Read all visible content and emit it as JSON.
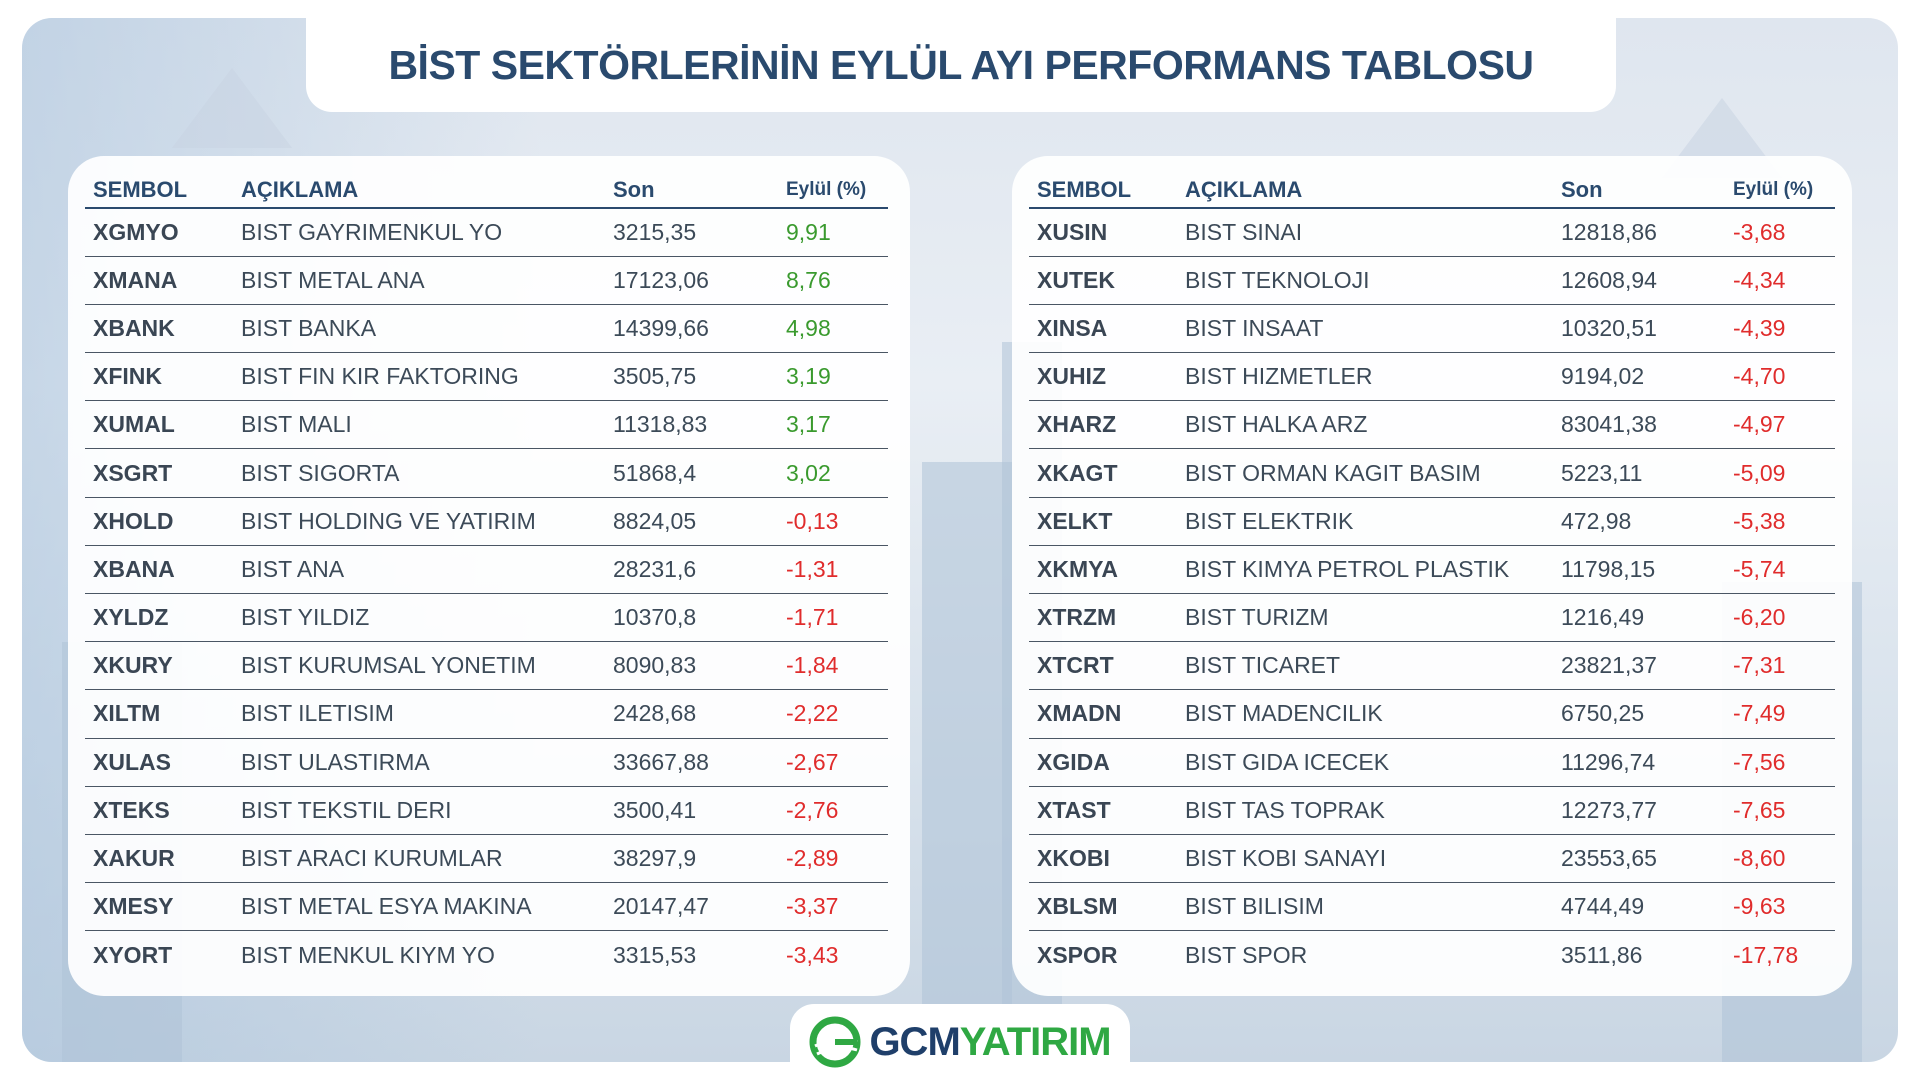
{
  "title": "BİST SEKTÖRLERİNİN EYLÜL AYI PERFORMANS TABLOSU",
  "headers": {
    "symbol": "SEMBOL",
    "description": "AÇIKLAMA",
    "last": "Son",
    "change": "Eylül (%)"
  },
  "colors": {
    "positive": "#3a9a2e",
    "negative": "#e02c2c",
    "heading": "#2a4a6e"
  },
  "left_rows": [
    {
      "symbol": "XGMYO",
      "description": "BIST GAYRIMENKUL YO",
      "last": "3215,35",
      "change": "9,91",
      "dir": "pos"
    },
    {
      "symbol": "XMANA",
      "description": "BIST METAL ANA",
      "last": "17123,06",
      "change": "8,76",
      "dir": "pos"
    },
    {
      "symbol": "XBANK",
      "description": "BIST BANKA",
      "last": "14399,66",
      "change": "4,98",
      "dir": "pos"
    },
    {
      "symbol": "XFINK",
      "description": "BIST FIN KIR FAKTORING",
      "last": "3505,75",
      "change": "3,19",
      "dir": "pos"
    },
    {
      "symbol": "XUMAL",
      "description": "BIST MALI",
      "last": "11318,83",
      "change": "3,17",
      "dir": "pos"
    },
    {
      "symbol": "XSGRT",
      "description": "BIST SIGORTA",
      "last": "51868,4",
      "change": "3,02",
      "dir": "pos"
    },
    {
      "symbol": "XHOLD",
      "description": "BIST HOLDING VE YATIRIM",
      "last": "8824,05",
      "change": "-0,13",
      "dir": "neg"
    },
    {
      "symbol": "XBANA",
      "description": "BIST ANA",
      "last": "28231,6",
      "change": "-1,31",
      "dir": "neg"
    },
    {
      "symbol": "XYLDZ",
      "description": "BIST YILDIZ",
      "last": "10370,8",
      "change": "-1,71",
      "dir": "neg"
    },
    {
      "symbol": "XKURY",
      "description": "BIST KURUMSAL YONETIM",
      "last": "8090,83",
      "change": "-1,84",
      "dir": "neg"
    },
    {
      "symbol": "XILTM",
      "description": "BIST ILETISIM",
      "last": "2428,68",
      "change": "-2,22",
      "dir": "neg"
    },
    {
      "symbol": "XULAS",
      "description": "BIST ULASTIRMA",
      "last": "33667,88",
      "change": "-2,67",
      "dir": "neg"
    },
    {
      "symbol": "XTEKS",
      "description": "BIST TEKSTIL DERI",
      "last": "3500,41",
      "change": "-2,76",
      "dir": "neg"
    },
    {
      "symbol": "XAKUR",
      "description": "BIST ARACI KURUMLAR",
      "last": "38297,9",
      "change": "-2,89",
      "dir": "neg"
    },
    {
      "symbol": "XMESY",
      "description": "BIST METAL ESYA MAKINA",
      "last": "20147,47",
      "change": "-3,37",
      "dir": "neg"
    },
    {
      "symbol": "XYORT",
      "description": "BIST MENKUL KIYM YO",
      "last": "3315,53",
      "change": "-3,43",
      "dir": "neg"
    }
  ],
  "right_rows": [
    {
      "symbol": "XUSIN",
      "description": "BIST SINAI",
      "last": "12818,86",
      "change": "-3,68",
      "dir": "neg"
    },
    {
      "symbol": "XUTEK",
      "description": "BIST TEKNOLOJI",
      "last": "12608,94",
      "change": "-4,34",
      "dir": "neg"
    },
    {
      "symbol": "XINSA",
      "description": "BIST INSAAT",
      "last": "10320,51",
      "change": "-4,39",
      "dir": "neg"
    },
    {
      "symbol": "XUHIZ",
      "description": "BIST HIZMETLER",
      "last": "9194,02",
      "change": "-4,70",
      "dir": "neg"
    },
    {
      "symbol": "XHARZ",
      "description": "BIST HALKA ARZ",
      "last": "83041,38",
      "change": "-4,97",
      "dir": "neg"
    },
    {
      "symbol": "XKAGT",
      "description": "BIST ORMAN KAGIT BASIM",
      "last": "5223,11",
      "change": "-5,09",
      "dir": "neg"
    },
    {
      "symbol": "XELKT",
      "description": "BIST ELEKTRIK",
      "last": "472,98",
      "change": "-5,38",
      "dir": "neg"
    },
    {
      "symbol": "XKMYA",
      "description": "BIST KIMYA PETROL PLASTIK",
      "last": "11798,15",
      "change": "-5,74",
      "dir": "neg"
    },
    {
      "symbol": "XTRZM",
      "description": "BIST TURIZM",
      "last": "1216,49",
      "change": "-6,20",
      "dir": "neg"
    },
    {
      "symbol": "XTCRT",
      "description": "BIST TICARET",
      "last": "23821,37",
      "change": "-7,31",
      "dir": "neg"
    },
    {
      "symbol": "XMADN",
      "description": "BIST MADENCILIK",
      "last": "6750,25",
      "change": "-7,49",
      "dir": "neg"
    },
    {
      "symbol": "XGIDA",
      "description": "BIST GIDA ICECEK",
      "last": "11296,74",
      "change": "-7,56",
      "dir": "neg"
    },
    {
      "symbol": "XTAST",
      "description": "BIST TAS TOPRAK",
      "last": "12273,77",
      "change": "-7,65",
      "dir": "neg"
    },
    {
      "symbol": "XKOBI",
      "description": "BIST KOBI SANAYI",
      "last": "23553,65",
      "change": "-8,60",
      "dir": "neg"
    },
    {
      "symbol": "XBLSM",
      "description": "BIST BILISIM",
      "last": "4744,49",
      "change": "-9,63",
      "dir": "neg"
    },
    {
      "symbol": "XSPOR",
      "description": "BIST SPOR",
      "last": "3511,86",
      "change": "-17,78",
      "dir": "neg"
    }
  ],
  "logo": {
    "part1": "GCM",
    "part2": "YATIRIM",
    "icon": "globe-swoosh-icon"
  }
}
